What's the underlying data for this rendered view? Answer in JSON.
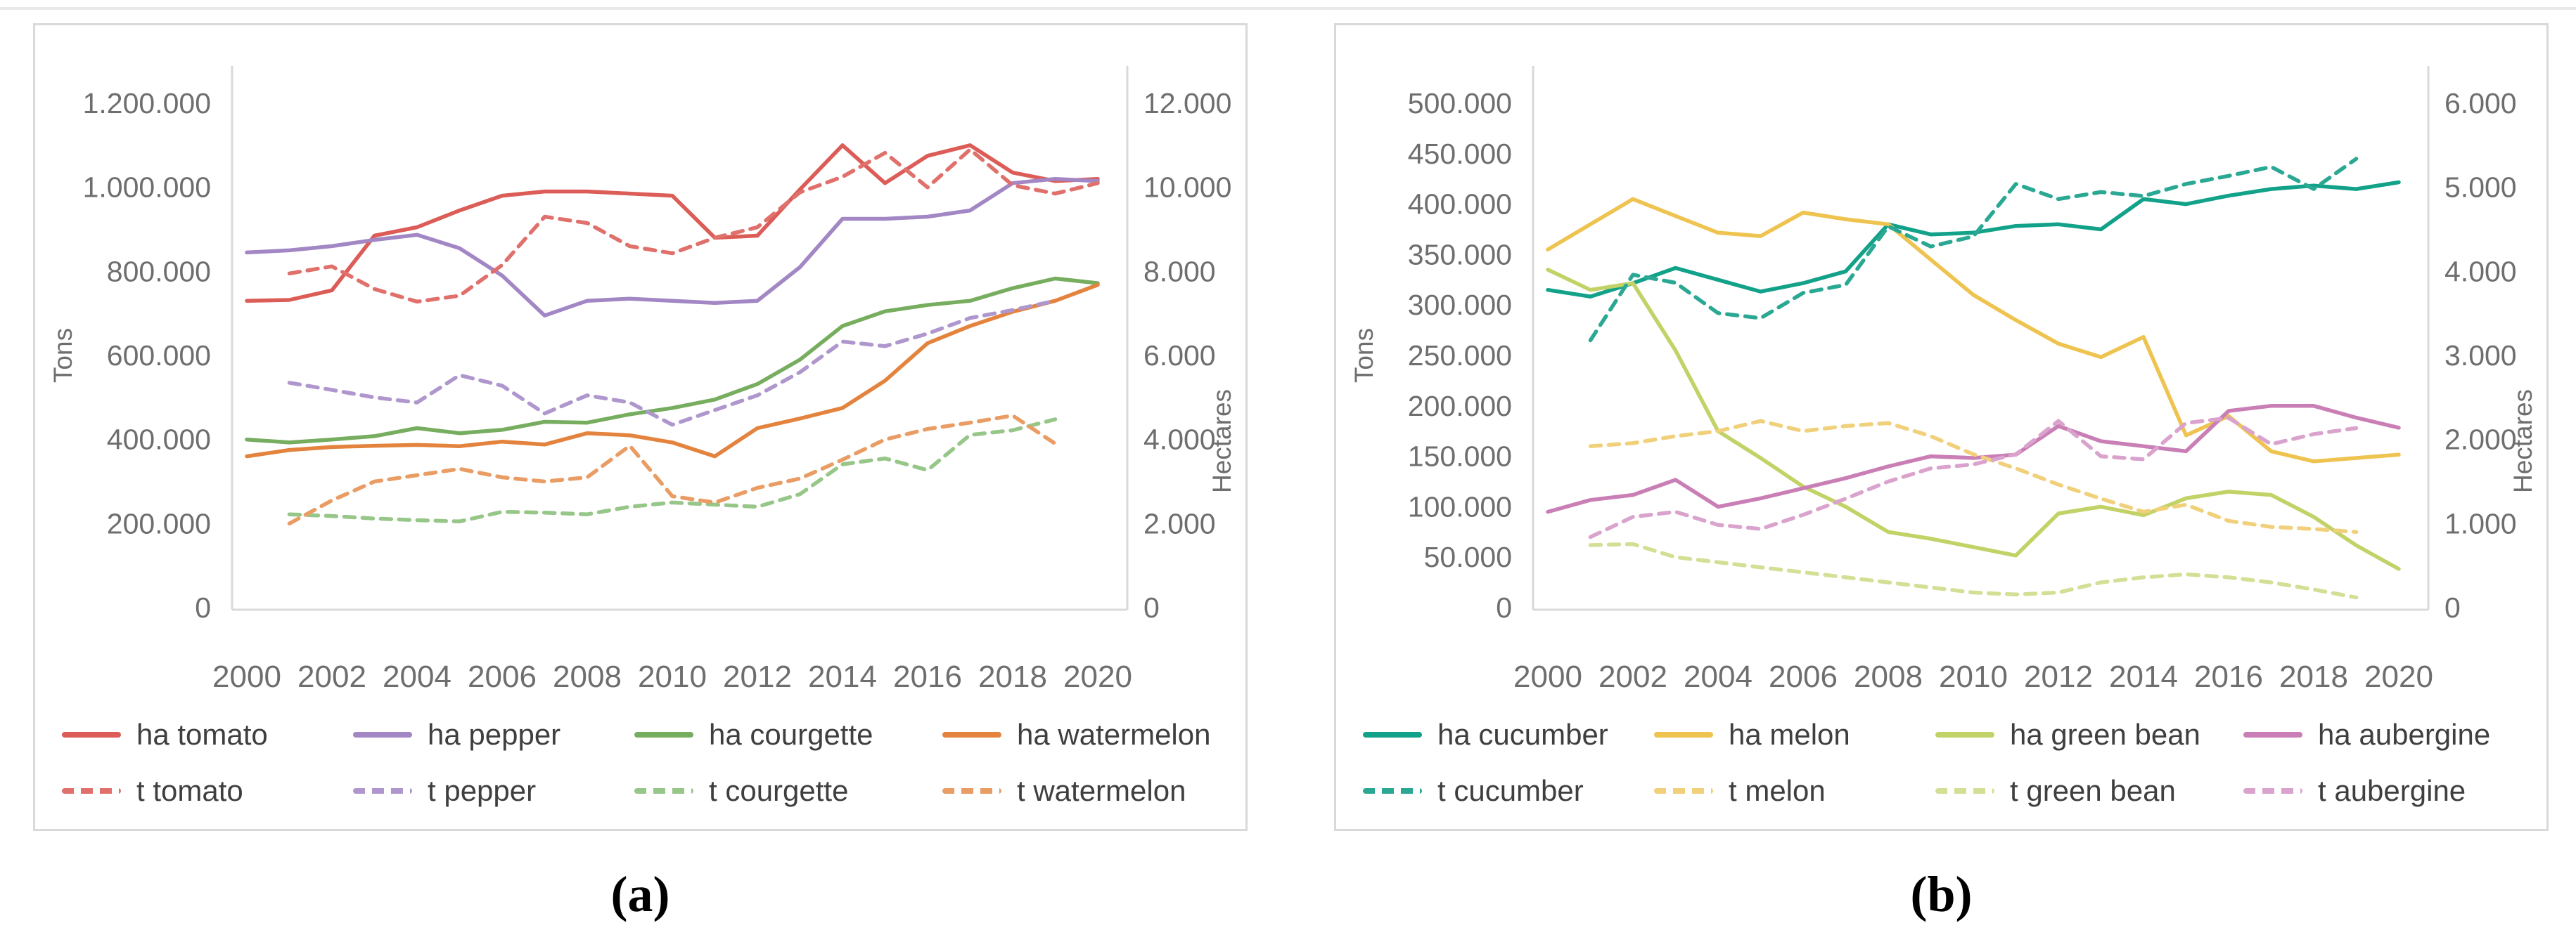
{
  "figure": {
    "captions": {
      "a": "(a)",
      "b": "(b)"
    }
  },
  "style": {
    "axis_line_color": "#d9d9d9",
    "tick_color": "#6e6e6e",
    "legend_text_color": "#3f3f3f",
    "panel_border_color": "#d9d9d9"
  },
  "chart_data": [
    {
      "id": "a",
      "type": "line",
      "title": "",
      "xlabel": "",
      "ylabel_left": "Tons",
      "ylabel_right": "Hectares",
      "x": [
        2000,
        2001,
        2002,
        2003,
        2004,
        2005,
        2006,
        2007,
        2008,
        2009,
        2010,
        2011,
        2012,
        2013,
        2014,
        2015,
        2016,
        2017,
        2018,
        2019,
        2020
      ],
      "xticks": [
        [
          2000,
          "2000"
        ],
        [
          2002,
          "2002"
        ],
        [
          2004,
          "2004"
        ],
        [
          2006,
          "2006"
        ],
        [
          2008,
          "2008"
        ],
        [
          2010,
          "2010"
        ],
        [
          2012,
          "2012"
        ],
        [
          2014,
          "2014"
        ],
        [
          2016,
          "2016"
        ],
        [
          2018,
          "2018"
        ],
        [
          2020,
          "2020"
        ]
      ],
      "ylim_left": [
        0,
        1200000
      ],
      "ylim_right": [
        0,
        12000
      ],
      "yticks_left": [
        [
          0,
          "0"
        ],
        [
          200000,
          "200.000"
        ],
        [
          400000,
          "400.000"
        ],
        [
          600000,
          "600.000"
        ],
        [
          800000,
          "800.000"
        ],
        [
          1000000,
          "1.000.000"
        ],
        [
          1200000,
          "1.200.000"
        ]
      ],
      "yticks_right": [
        [
          0,
          "0"
        ],
        [
          2000,
          "2.000"
        ],
        [
          4000,
          "4.000"
        ],
        [
          6000,
          "6.000"
        ],
        [
          8000,
          "8.000"
        ],
        [
          10000,
          "10.000"
        ],
        [
          12000,
          "12.000"
        ]
      ],
      "grid": false,
      "legend_position": "bottom",
      "series": [
        {
          "name": "ha tomato",
          "axis": "right",
          "style": "solid",
          "color": "#dc5c57",
          "values": [
            7300,
            7320,
            7550,
            8850,
            9050,
            9450,
            9800,
            9900,
            9900,
            9850,
            9800,
            8800,
            8850,
            9950,
            11000,
            10100,
            10750,
            11000,
            10350,
            10150,
            10200
          ]
        },
        {
          "name": "ha pepper",
          "axis": "right",
          "style": "solid",
          "color": "#a287c4",
          "values": [
            8450,
            8500,
            8600,
            8750,
            8870,
            8550,
            7900,
            6950,
            7300,
            7350,
            7300,
            7250,
            7300,
            8100,
            9250,
            9250,
            9300,
            9450,
            10100,
            10200,
            10150
          ]
        },
        {
          "name": "ha courgette",
          "axis": "right",
          "style": "solid",
          "color": "#77ad5f",
          "values": [
            4000,
            3930,
            4000,
            4080,
            4270,
            4150,
            4230,
            4420,
            4400,
            4600,
            4750,
            4950,
            5320,
            5900,
            6700,
            7050,
            7200,
            7300,
            7600,
            7830,
            7720
          ]
        },
        {
          "name": "ha watermelon",
          "axis": "right",
          "style": "solid",
          "color": "#e3833e",
          "values": [
            3600,
            3750,
            3820,
            3850,
            3870,
            3840,
            3950,
            3880,
            4150,
            4100,
            3930,
            3600,
            4270,
            4500,
            4750,
            5400,
            6290,
            6700,
            7040,
            7300,
            7680
          ]
        },
        {
          "name": "t tomato",
          "axis": "left",
          "style": "dashed",
          "color": "#e0706b",
          "values": [
            null,
            795000,
            812000,
            758000,
            728000,
            742000,
            815000,
            930000,
            915000,
            860000,
            843000,
            880000,
            905000,
            988000,
            1025000,
            1082000,
            1000000,
            1090000,
            1005000,
            985000,
            1010000
          ]
        },
        {
          "name": "t pepper",
          "axis": "left",
          "style": "dashed",
          "color": "#af97ce",
          "values": [
            null,
            535000,
            518000,
            500000,
            488000,
            553000,
            528000,
            462000,
            505000,
            488000,
            435000,
            470000,
            505000,
            560000,
            633000,
            622000,
            652000,
            689000,
            708000,
            730000,
            null
          ]
        },
        {
          "name": "t courgette",
          "axis": "left",
          "style": "dashed",
          "color": "#97c689",
          "values": [
            null,
            222000,
            218000,
            212000,
            208000,
            205000,
            228000,
            226000,
            222000,
            240000,
            250000,
            245000,
            240000,
            270000,
            341000,
            355000,
            327000,
            411000,
            422000,
            448000,
            null
          ]
        },
        {
          "name": "t watermelon",
          "axis": "left",
          "style": "dashed",
          "color": "#e99c64",
          "values": [
            null,
            200000,
            255000,
            300000,
            315000,
            330000,
            310000,
            300000,
            310000,
            385000,
            265000,
            250000,
            285000,
            307000,
            352000,
            400000,
            425000,
            440000,
            457000,
            390000,
            null
          ]
        }
      ]
    },
    {
      "id": "b",
      "type": "line",
      "title": "",
      "xlabel": "",
      "ylabel_left": "Tons",
      "ylabel_right": "Hectares",
      "x": [
        2000,
        2001,
        2002,
        2003,
        2004,
        2005,
        2006,
        2007,
        2008,
        2009,
        2010,
        2011,
        2012,
        2013,
        2014,
        2015,
        2016,
        2017,
        2018,
        2019,
        2020
      ],
      "xticks": [
        [
          2000,
          "2000"
        ],
        [
          2002,
          "2002"
        ],
        [
          2004,
          "2004"
        ],
        [
          2006,
          "2006"
        ],
        [
          2008,
          "2008"
        ],
        [
          2010,
          "2010"
        ],
        [
          2012,
          "2012"
        ],
        [
          2014,
          "2014"
        ],
        [
          2016,
          "2016"
        ],
        [
          2018,
          "2018"
        ],
        [
          2020,
          "2020"
        ]
      ],
      "ylim_left": [
        0,
        500000
      ],
      "ylim_right": [
        0,
        6000
      ],
      "yticks_left": [
        [
          0,
          "0"
        ],
        [
          50000,
          "50.000"
        ],
        [
          100000,
          "100.000"
        ],
        [
          150000,
          "150.000"
        ],
        [
          200000,
          "200.000"
        ],
        [
          250000,
          "250.000"
        ],
        [
          300000,
          "300.000"
        ],
        [
          350000,
          "350.000"
        ],
        [
          400000,
          "400.000"
        ],
        [
          450000,
          "450.000"
        ],
        [
          500000,
          "500.000"
        ]
      ],
      "yticks_right": [
        [
          0,
          "0"
        ],
        [
          1000,
          "1.000"
        ],
        [
          2000,
          "2.000"
        ],
        [
          3000,
          "3.000"
        ],
        [
          4000,
          "4.000"
        ],
        [
          5000,
          "5.000"
        ],
        [
          6000,
          "6.000"
        ]
      ],
      "grid": false,
      "legend_position": "bottom",
      "series": [
        {
          "name": "ha cucumber",
          "axis": "right",
          "style": "solid",
          "color": "#12a189",
          "values": [
            3780,
            3700,
            3860,
            4040,
            3900,
            3760,
            3860,
            4000,
            4560,
            4440,
            4460,
            4540,
            4560,
            4500,
            4860,
            4800,
            4900,
            4980,
            5020,
            4980,
            5060
          ]
        },
        {
          "name": "ha melon",
          "axis": "right",
          "style": "solid",
          "color": "#eec34f",
          "values": [
            4260,
            4560,
            4860,
            4660,
            4460,
            4420,
            4700,
            4620,
            4560,
            4140,
            3720,
            3420,
            3140,
            2980,
            3220,
            2050,
            2280,
            1860,
            1740,
            1780,
            1820
          ]
        },
        {
          "name": "ha green bean",
          "axis": "right",
          "style": "solid",
          "color": "#c2d266",
          "values": [
            4020,
            3780,
            3860,
            3060,
            2100,
            1780,
            1440,
            1200,
            900,
            820,
            720,
            620,
            1120,
            1200,
            1100,
            1300,
            1380,
            1340,
            1080,
            740,
            460
          ]
        },
        {
          "name": "ha aubergine",
          "axis": "right",
          "style": "solid",
          "color": "#c97fb5",
          "values": [
            1140,
            1280,
            1340,
            1520,
            1200,
            1300,
            1420,
            1540,
            1680,
            1800,
            1780,
            1820,
            2160,
            1980,
            1920,
            1860,
            2340,
            2400,
            2400,
            2260,
            2140
          ]
        },
        {
          "name": "t cucumber",
          "axis": "left",
          "style": "dashed",
          "color": "#2aa893",
          "values": [
            null,
            265000,
            330000,
            322000,
            292000,
            287000,
            312000,
            320000,
            378000,
            358000,
            368000,
            420000,
            405000,
            412000,
            408000,
            420000,
            428000,
            437000,
            415000,
            445000,
            null
          ]
        },
        {
          "name": "t melon",
          "axis": "left",
          "style": "dashed",
          "color": "#f1d07b",
          "values": [
            null,
            160000,
            163000,
            170000,
            175000,
            185000,
            175000,
            180000,
            183000,
            170000,
            152000,
            138000,
            122000,
            108000,
            95000,
            102000,
            86000,
            80000,
            78000,
            75000,
            null
          ]
        },
        {
          "name": "t green bean",
          "axis": "left",
          "style": "dashed",
          "color": "#d5de95",
          "values": [
            null,
            62000,
            63000,
            50000,
            45000,
            40000,
            35000,
            30000,
            25000,
            20000,
            15000,
            13000,
            15000,
            25000,
            30000,
            33000,
            30000,
            25000,
            18000,
            10000,
            null
          ]
        },
        {
          "name": "t aubergine",
          "axis": "left",
          "style": "dashed",
          "color": "#daa3cd",
          "values": [
            null,
            70000,
            90000,
            95000,
            82000,
            78000,
            92000,
            108000,
            125000,
            138000,
            142000,
            152000,
            185000,
            150000,
            147000,
            183000,
            188000,
            162000,
            172000,
            178000,
            null
          ]
        }
      ]
    }
  ]
}
